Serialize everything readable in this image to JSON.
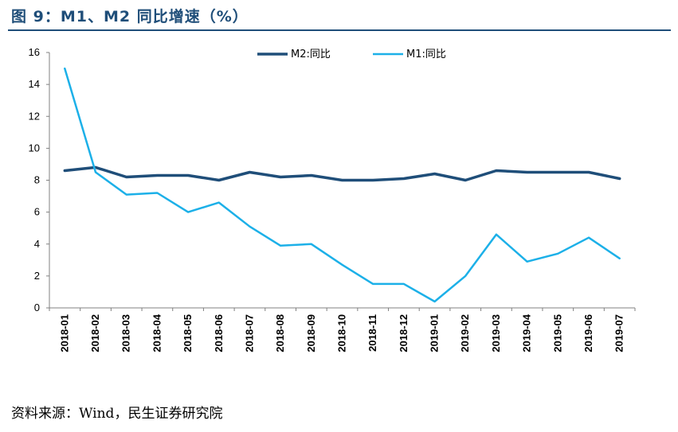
{
  "figure": {
    "title": "图 9：M1、M2 同比增速（%）",
    "source": "资料来源：Wind，民生证券研究院"
  },
  "chart_data": {
    "type": "line",
    "title": "",
    "xlabel": "",
    "ylabel": "",
    "ylim": [
      0,
      16
    ],
    "yticks": [
      0,
      2,
      4,
      6,
      8,
      10,
      12,
      14,
      16
    ],
    "grid": false,
    "legend_position": "top",
    "categories": [
      "2018-01",
      "2018-02",
      "2018-03",
      "2018-04",
      "2018-05",
      "2018-06",
      "2018-07",
      "2018-08",
      "2018-09",
      "2018-10",
      "2018-11",
      "2018-12",
      "2019-01",
      "2019-02",
      "2019-03",
      "2019-04",
      "2019-05",
      "2019-06",
      "2019-07"
    ],
    "series": [
      {
        "name": "M2:同比",
        "color": "#1f4e79",
        "values": [
          8.6,
          8.8,
          8.2,
          8.3,
          8.3,
          8.0,
          8.5,
          8.2,
          8.3,
          8.0,
          8.0,
          8.1,
          8.4,
          8.0,
          8.6,
          8.5,
          8.5,
          8.5,
          8.1
        ]
      },
      {
        "name": "M1:同比",
        "color": "#1cb0e8",
        "values": [
          15.0,
          8.5,
          7.1,
          7.2,
          6.0,
          6.6,
          5.1,
          3.9,
          4.0,
          2.7,
          1.5,
          1.5,
          0.4,
          2.0,
          4.6,
          2.9,
          3.4,
          4.4,
          3.1
        ]
      }
    ]
  }
}
